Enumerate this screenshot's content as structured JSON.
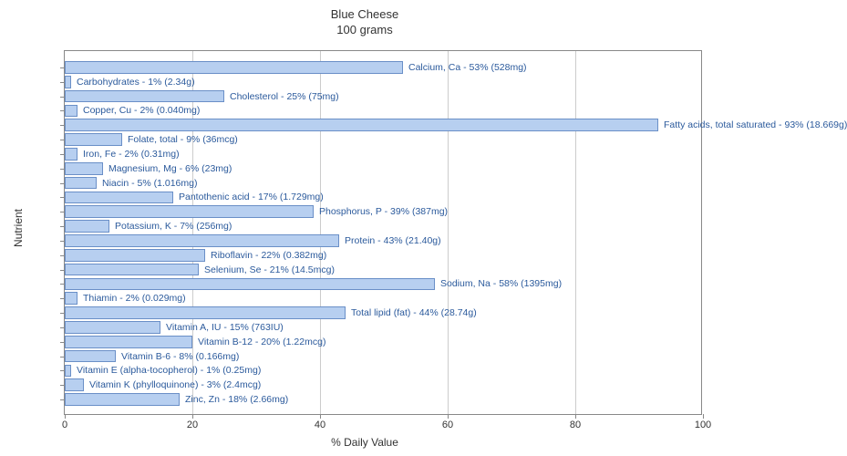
{
  "chart": {
    "type": "bar-horizontal",
    "title_line1": "Blue Cheese",
    "title_line2": "100 grams",
    "title_fontsize": 13,
    "xlabel": "% Daily Value",
    "ylabel": "Nutrient",
    "label_fontsize": 12,
    "xlim": [
      0,
      100
    ],
    "xtick_step": 20,
    "xticks": [
      0,
      20,
      40,
      60,
      80,
      100
    ],
    "background_color": "#ffffff",
    "grid_color": "#cccccc",
    "axis_color": "#888888",
    "bar_fill": "#b7cff0",
    "bar_stroke": "#6a8fc7",
    "label_color": "#2b5a9c",
    "bar_label_fontsize": 10.5,
    "bars": [
      {
        "value": 53,
        "label": "Calcium, Ca - 53% (528mg)"
      },
      {
        "value": 1,
        "label": "Carbohydrates - 1% (2.34g)"
      },
      {
        "value": 25,
        "label": "Cholesterol - 25% (75mg)"
      },
      {
        "value": 2,
        "label": "Copper, Cu - 2% (0.040mg)"
      },
      {
        "value": 93,
        "label": "Fatty acids, total saturated - 93% (18.669g)"
      },
      {
        "value": 9,
        "label": "Folate, total - 9% (36mcg)"
      },
      {
        "value": 2,
        "label": "Iron, Fe - 2% (0.31mg)"
      },
      {
        "value": 6,
        "label": "Magnesium, Mg - 6% (23mg)"
      },
      {
        "value": 5,
        "label": "Niacin - 5% (1.016mg)"
      },
      {
        "value": 17,
        "label": "Pantothenic acid - 17% (1.729mg)"
      },
      {
        "value": 39,
        "label": "Phosphorus, P - 39% (387mg)"
      },
      {
        "value": 7,
        "label": "Potassium, K - 7% (256mg)"
      },
      {
        "value": 43,
        "label": "Protein - 43% (21.40g)"
      },
      {
        "value": 22,
        "label": "Riboflavin - 22% (0.382mg)"
      },
      {
        "value": 21,
        "label": "Selenium, Se - 21% (14.5mcg)"
      },
      {
        "value": 58,
        "label": "Sodium, Na - 58% (1395mg)"
      },
      {
        "value": 2,
        "label": "Thiamin - 2% (0.029mg)"
      },
      {
        "value": 44,
        "label": "Total lipid (fat) - 44% (28.74g)"
      },
      {
        "value": 15,
        "label": "Vitamin A, IU - 15% (763IU)"
      },
      {
        "value": 20,
        "label": "Vitamin B-12 - 20% (1.22mcg)"
      },
      {
        "value": 8,
        "label": "Vitamin B-6 - 8% (0.166mg)"
      },
      {
        "value": 1,
        "label": "Vitamin E (alpha-tocopherol) - 1% (0.25mg)"
      },
      {
        "value": 3,
        "label": "Vitamin K (phylloquinone) - 3% (2.4mcg)"
      },
      {
        "value": 18,
        "label": "Zinc, Zn - 18% (2.66mg)"
      }
    ]
  }
}
